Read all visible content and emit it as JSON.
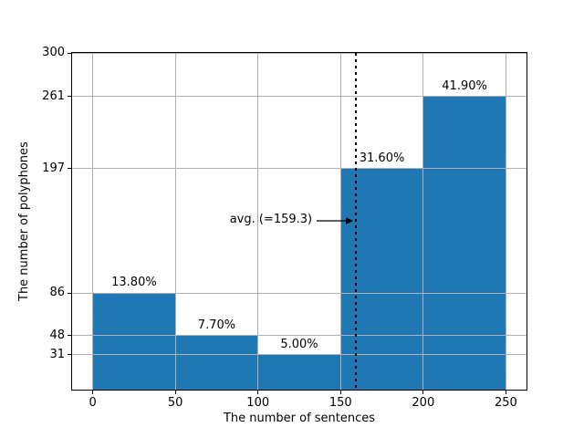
{
  "chart_data": {
    "type": "bar",
    "title": "",
    "xlabel": "The number of sentences",
    "ylabel": "The number of polyphones",
    "bin_edges": [
      0,
      50,
      100,
      150,
      200,
      250
    ],
    "values": [
      86,
      48,
      31,
      197,
      261
    ],
    "bar_labels": [
      "13.80%",
      "7.70%",
      "5.00%",
      "31.60%",
      "41.90%"
    ],
    "xticks": [
      "0",
      "50",
      "100",
      "150",
      "200",
      "250"
    ],
    "xtick_values": [
      0,
      50,
      100,
      150,
      200,
      250
    ],
    "yticks": [
      "31",
      "48",
      "86",
      "197",
      "261",
      "300"
    ],
    "ytick_values": [
      31,
      48,
      86,
      197,
      261,
      300
    ],
    "xlim": [
      -12.5,
      262.5
    ],
    "ylim": [
      0,
      300
    ],
    "grid": true,
    "legend": null,
    "avg_line": {
      "x": 159.3,
      "style": "dotted",
      "color": "#000000"
    },
    "annotation": {
      "text": "avg. (=159.3)",
      "points_to_x": 159.3
    },
    "colors": {
      "bar": "#1f77b4",
      "grid": "#b0b0b0",
      "spine": "#000000",
      "background": "#ffffff",
      "text": "#000000"
    }
  }
}
